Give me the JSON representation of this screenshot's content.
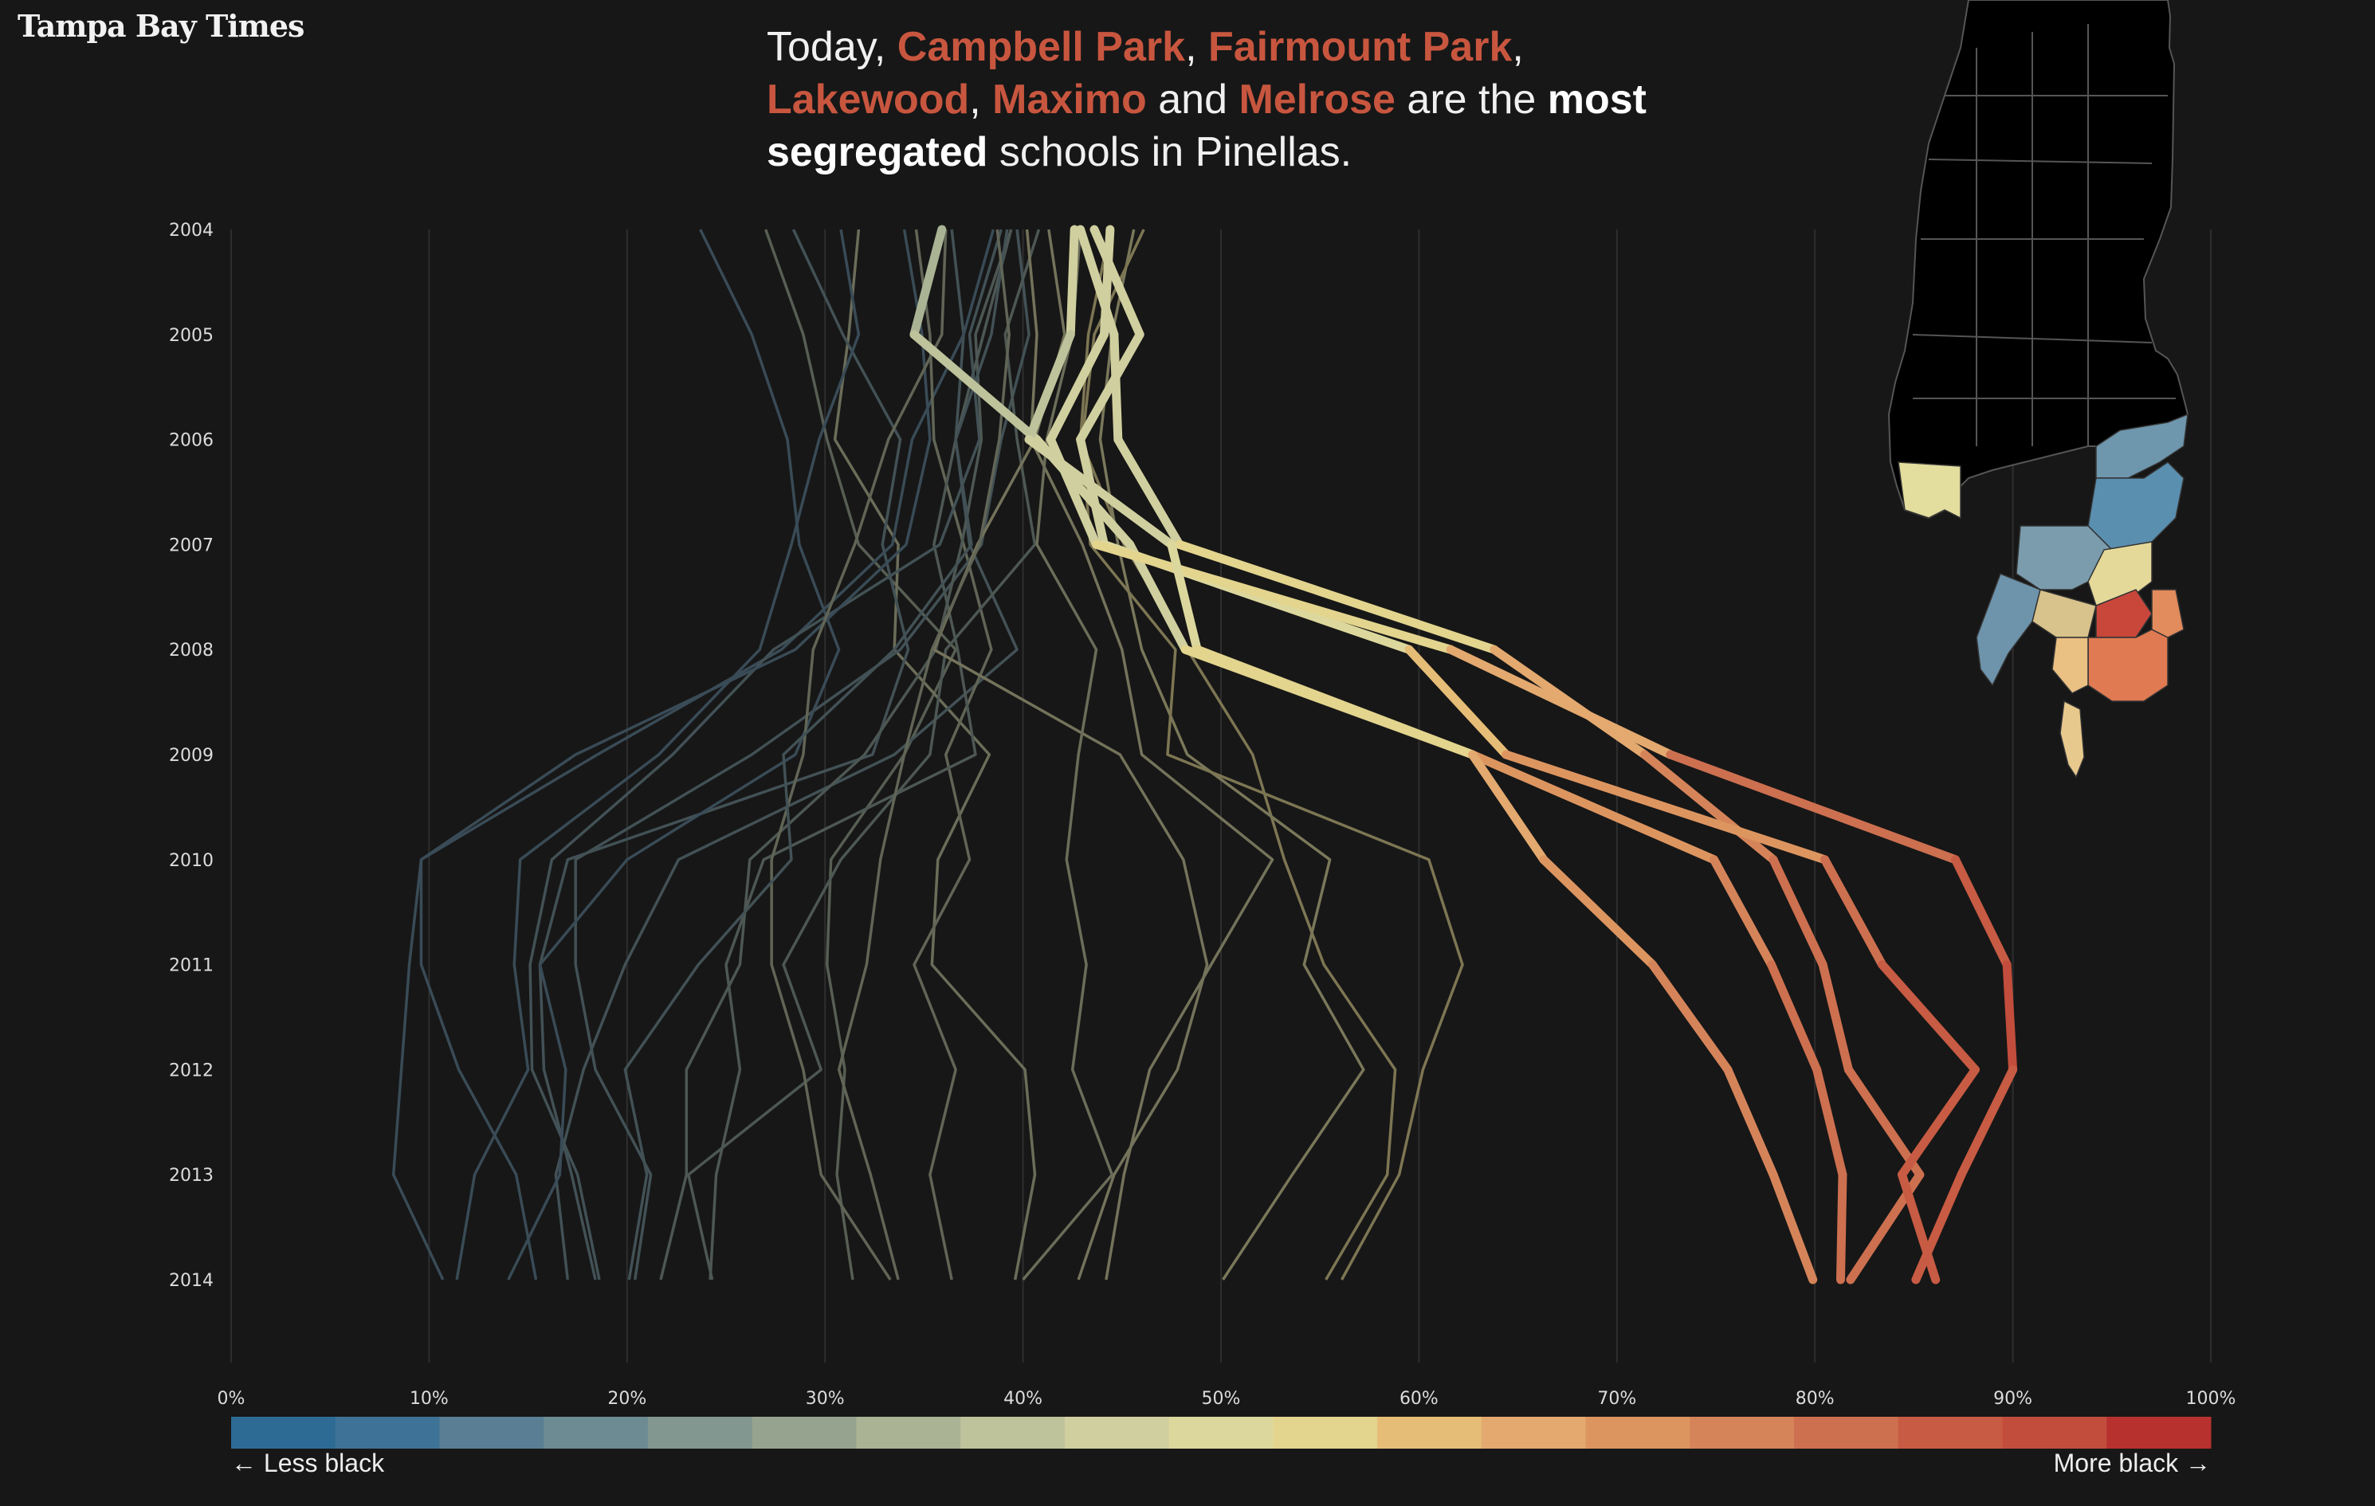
{
  "logo": "Tampa Bay Times",
  "headline": {
    "prefix": "Today, ",
    "schools": [
      "Campbell Park",
      "Fairmount Park",
      "Lakewood",
      "Maximo",
      "Melrose"
    ],
    "sep1": ", ",
    "sep2": ", ",
    "sep3": ", ",
    "and": " and ",
    "middle": " are the ",
    "bold1": "most",
    "bold2": "segregated",
    "suffix": " schools in Pinellas."
  },
  "legend": {
    "less": "← Less black",
    "more": "More black →",
    "colors": [
      "#2e6b94",
      "#3f7297",
      "#5a7f95",
      "#6d8b92",
      "#82978f",
      "#96a48f",
      "#aab394",
      "#bec39b",
      "#d0cf9f",
      "#dcd89d",
      "#e3d48e",
      "#e6bd77",
      "#e3a96f",
      "#dd9560",
      "#d5845a",
      "#cd7050",
      "#c75b43",
      "#c24d3c",
      "#b7312e"
    ]
  },
  "chart_data": {
    "type": "line",
    "title": "",
    "xlabel": "",
    "ylabel": "",
    "xlim": [
      0,
      100
    ],
    "x_ticks": [
      "0%",
      "10%",
      "20%",
      "30%",
      "40%",
      "50%",
      "60%",
      "70%",
      "80%",
      "90%",
      "100%"
    ],
    "years": [
      "2004",
      "2005",
      "2006",
      "2007",
      "2008",
      "2009",
      "2010",
      "2011",
      "2012",
      "2013",
      "2014"
    ],
    "highlight": [
      {
        "values": [
          35.9,
          34.5,
          40.7,
          45.4,
          48.2,
          62.7,
          74.9,
          77.8,
          80.1,
          81.4,
          81.3
        ]
      },
      {
        "values": [
          42.9,
          44.6,
          44.8,
          47.9,
          63.8,
          71.4,
          77.9,
          80.4,
          81.7,
          85.3,
          81.8
        ]
      },
      {
        "values": [
          43.6,
          45.9,
          42.9,
          44.1,
          59.5,
          64.4,
          80.5,
          83.4,
          88.1,
          84.4,
          86.1
        ]
      },
      {
        "values": [
          44.4,
          44.1,
          41.4,
          43.7,
          61.6,
          72.7,
          87.1,
          89.7,
          90.0,
          87.4,
          85.1
        ]
      },
      {
        "values": [
          42.6,
          42.4,
          40.3,
          47.5,
          48.8,
          62.7,
          66.3,
          71.8,
          75.6,
          77.9,
          79.9
        ]
      }
    ],
    "series": [
      {
        "values": [
          27.0,
          28.9,
          30.1,
          31.7,
          36.6,
          34.0,
          30.3,
          30.1,
          31.0,
          30.6,
          31.4
        ]
      },
      {
        "values": [
          31.7,
          31.2,
          30.5,
          33.7,
          33.5,
          38.3,
          35.7,
          35.4,
          40.1,
          40.6,
          39.6
        ]
      },
      {
        "values": [
          36.4,
          37.0,
          36.6,
          37.3,
          39.7,
          33.5,
          22.6,
          19.9,
          17.8,
          16.4,
          17.0
        ]
      },
      {
        "values": [
          28.4,
          30.9,
          33.8,
          32.9,
          34.2,
          32.4,
          17.0,
          15.6,
          15.8,
          17.2,
          18.4
        ]
      },
      {
        "values": [
          38.5,
          37.0,
          34.4,
          33.4,
          27.8,
          18.5,
          9.6,
          9.6,
          11.5,
          14.4,
          15.4
        ]
      },
      {
        "values": [
          30.8,
          31.7,
          29.7,
          28.3,
          26.7,
          21.6,
          14.6,
          14.3,
          15.0,
          12.3,
          11.4
        ]
      },
      {
        "values": [
          34.6,
          35.3,
          35.5,
          37.0,
          38.4,
          36.1,
          37.3,
          34.5,
          36.6,
          35.3,
          36.4
        ]
      },
      {
        "values": [
          39.4,
          38.0,
          36.6,
          35.5,
          36.7,
          37.6,
          26.9,
          25.0,
          25.7,
          24.5,
          24.2
        ]
      },
      {
        "values": [
          39.7,
          40.3,
          38.9,
          37.9,
          33.8,
          26.3,
          17.4,
          17.4,
          18.4,
          21.2,
          20.4
        ]
      },
      {
        "values": [
          38.9,
          37.3,
          37.8,
          35.8,
          27.4,
          22.3,
          16.2,
          15.1,
          15.2,
          17.5,
          18.6
        ]
      },
      {
        "values": [
          34.0,
          34.9,
          35.3,
          34.1,
          28.5,
          17.4,
          9.6,
          9.0,
          8.6,
          8.2,
          10.7
        ]
      },
      {
        "values": [
          39.4,
          37.6,
          37.9,
          36.9,
          35.6,
          32.0,
          26.2,
          25.7,
          23.0,
          23.0,
          21.7
        ]
      },
      {
        "values": [
          40.8,
          39.1,
          39.7,
          40.6,
          36.1,
          35.3,
          30.8,
          27.9,
          29.8,
          23.1,
          24.3
        ]
      },
      {
        "values": [
          23.7,
          26.3,
          28.1,
          28.7,
          30.7,
          28.5,
          20.0,
          15.6,
          16.9,
          16.6,
          14.0
        ]
      },
      {
        "values": [
          36.1,
          35.9,
          33.2,
          31.5,
          29.4,
          28.9,
          27.3,
          27.3,
          28.9,
          29.8,
          33.3
        ]
      },
      {
        "values": [
          40.2,
          40.7,
          40.4,
          43.0,
          45.0,
          46.0,
          52.6,
          49.5,
          46.4,
          45.1,
          44.2
        ]
      },
      {
        "values": [
          41.3,
          42.1,
          40.6,
          37.7,
          35.5,
          44.9,
          48.1,
          49.3,
          47.8,
          44.6,
          42.8
        ]
      },
      {
        "values": [
          42.9,
          42.5,
          41.2,
          40.7,
          43.7,
          42.8,
          42.2,
          43.2,
          42.5,
          44.5,
          40.0
        ]
      },
      {
        "values": [
          44.4,
          43.3,
          42.9,
          45.1,
          48.3,
          51.6,
          53.2,
          55.2,
          58.8,
          58.4,
          55.3
        ]
      },
      {
        "values": [
          45.6,
          44.5,
          43.9,
          44.8,
          46.0,
          48.3,
          55.5,
          54.2,
          57.2,
          53.6,
          50.1
        ]
      },
      {
        "values": [
          46.1,
          43.6,
          43.0,
          43.4,
          47.7,
          47.3,
          60.5,
          62.2,
          60.2,
          59.0,
          56.1
        ]
      },
      {
        "values": [
          39.2,
          38.4,
          36.6,
          37.4,
          33.5,
          27.9,
          28.3,
          23.6,
          19.9,
          21.0,
          20.1
        ]
      },
      {
        "values": [
          38.7,
          39.3,
          38.8,
          37.8,
          35.4,
          34.0,
          32.8,
          32.1,
          30.7,
          32.3,
          33.7
        ]
      }
    ]
  }
}
